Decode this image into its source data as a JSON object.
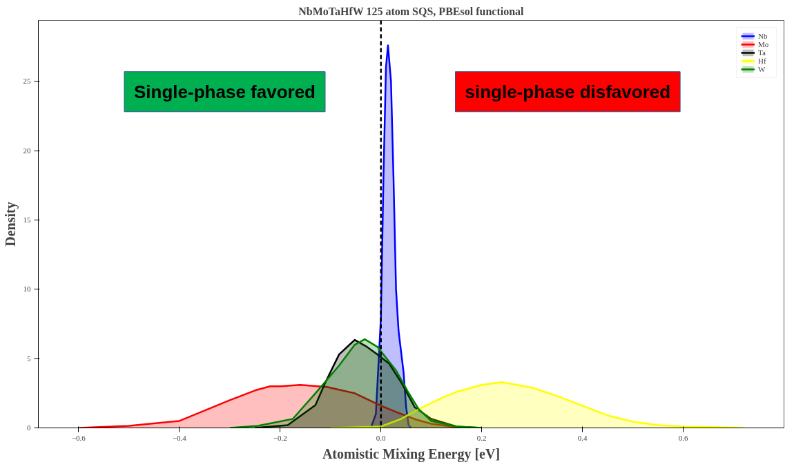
{
  "chart_data": {
    "type": "area",
    "title": "NbMoTaHfW 125 atom SQS, PBEsol functional",
    "xlabel": "Atomistic Mixing Energy [eV]",
    "ylabel": "Density",
    "xlim": [
      -0.68,
      0.8
    ],
    "ylim": [
      0,
      29.4
    ],
    "xticks": [
      {
        "value": -0.6,
        "label": "−0.6"
      },
      {
        "value": -0.4,
        "label": "−0.4"
      },
      {
        "value": -0.2,
        "label": "−0.2"
      },
      {
        "value": 0,
        "label": "0.0"
      },
      {
        "value": 0.2,
        "label": "0.2"
      },
      {
        "value": 0.4,
        "label": "0.4"
      },
      {
        "value": 0.6,
        "label": "0.6"
      }
    ],
    "yticks": [
      0,
      5,
      10,
      15,
      20,
      25
    ],
    "grid": false,
    "legend": "top right",
    "ref_lines": [
      {
        "axis": "x",
        "value": 0,
        "color": "#000000",
        "line_style": "dashed"
      }
    ],
    "annotations": [
      "Single-phase favored",
      "single-phase disfavored"
    ],
    "series": [
      {
        "name": "Nb",
        "color": "#0000ff",
        "x": [
          -0.02,
          -0.01,
          0,
          0.005,
          0.01,
          0.014,
          0.02,
          0.025,
          0.03,
          0.035,
          0.04,
          0.045,
          0.05,
          0.055,
          0.06
        ],
        "values": [
          0,
          1,
          8,
          18,
          26,
          27.6,
          25,
          18,
          10,
          7,
          5.5,
          4,
          1.5,
          0.2,
          0
        ]
      },
      {
        "name": "Mo",
        "color": "#ff0000",
        "x": [
          -0.6,
          -0.5,
          -0.4,
          -0.3,
          -0.25,
          -0.22,
          -0.2,
          -0.16,
          -0.107,
          -0.052,
          0,
          0.03,
          0.07,
          0.1,
          0.15,
          0.2
        ],
        "values": [
          0,
          0.15,
          0.5,
          2.0,
          2.7,
          3.0,
          3.0,
          3.1,
          2.95,
          2.5,
          1.6,
          1.15,
          0.6,
          0.3,
          0.05,
          0
        ]
      },
      {
        "name": "Ta",
        "color": "#000000",
        "x": [
          -0.25,
          -0.185,
          -0.13,
          -0.11,
          -0.083,
          -0.052,
          -0.03,
          -0.007,
          0.016,
          0.04,
          0.067,
          0.1,
          0.15,
          0.2
        ],
        "values": [
          0,
          0.2,
          1.65,
          3.3,
          5.3,
          6.35,
          5.9,
          5.3,
          4.65,
          3.3,
          1.5,
          0.65,
          0.1,
          0
        ]
      },
      {
        "name": "Hf",
        "color": "#ffff00",
        "x": [
          -0.1,
          0,
          0.04,
          0.075,
          0.12,
          0.15,
          0.2,
          0.24,
          0.3,
          0.35,
          0.4,
          0.45,
          0.5,
          0.55,
          0.6,
          0.7,
          0.72
        ],
        "values": [
          0,
          0.1,
          0.65,
          1.35,
          2.15,
          2.6,
          3.1,
          3.3,
          2.9,
          2.3,
          1.6,
          0.9,
          0.45,
          0.2,
          0.1,
          0.02,
          0
        ]
      },
      {
        "name": "W",
        "color": "#008000",
        "x": [
          -0.3,
          -0.244,
          -0.175,
          -0.13,
          -0.083,
          -0.052,
          -0.032,
          -0.007,
          0.03,
          0.053,
          0.075,
          0.1,
          0.15,
          0.2
        ],
        "values": [
          0,
          0.15,
          0.65,
          2.5,
          4.5,
          6.0,
          6.4,
          5.85,
          4.15,
          2.65,
          1.35,
          0.5,
          0.1,
          0
        ]
      }
    ]
  }
}
